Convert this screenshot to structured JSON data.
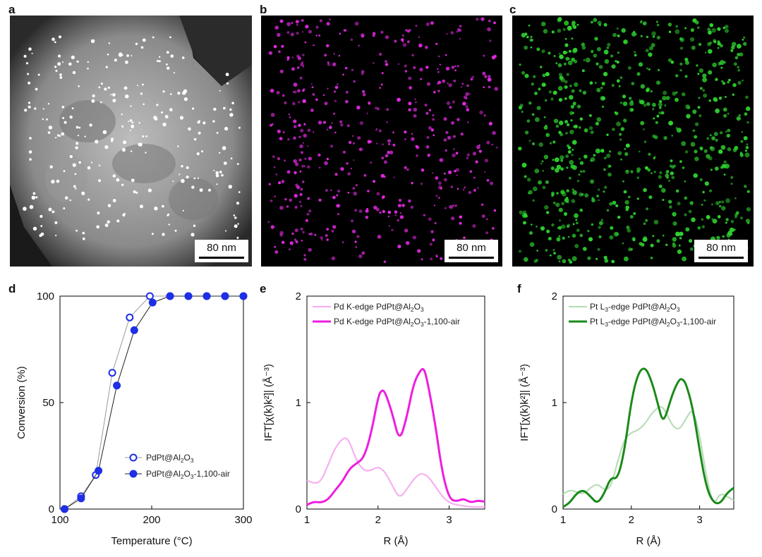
{
  "panels": {
    "a": {
      "letter": "a",
      "scale_label": "80 nm"
    },
    "b": {
      "letter": "b",
      "scale_label": "80 nm",
      "dot_color": "#e62ae6"
    },
    "c": {
      "letter": "c",
      "scale_label": "80 nm",
      "dot_color": "#2fd62f"
    },
    "d": {
      "letter": "d"
    },
    "e": {
      "letter": "e"
    },
    "f": {
      "letter": "f"
    }
  },
  "chart_data": [
    {
      "id": "d",
      "type": "line",
      "xlabel": "Temperature (°C)",
      "ylabel": "Conversion (%)",
      "xlim": [
        100,
        300
      ],
      "ylim": [
        0,
        100
      ],
      "xticks": [
        100,
        200,
        300
      ],
      "yticks": [
        0,
        50,
        100
      ],
      "legend_position": "bottom-right",
      "series": [
        {
          "name": "PdPt@Al2O3",
          "name_parts": [
            "PdPt@Al",
            "2",
            "O",
            "3",
            ""
          ],
          "marker": "open-circle",
          "color": "#1e2fe6",
          "x": [
            105,
            123,
            139,
            157,
            176,
            198,
            220,
            240,
            260,
            280,
            300
          ],
          "y": [
            0,
            6,
            16,
            64,
            90,
            100,
            100,
            100,
            100,
            100,
            100
          ]
        },
        {
          "name": "PdPt@Al2O3-1,100-air",
          "name_parts": [
            "PdPt@Al",
            "2",
            "O",
            "3",
            "-1,100-air"
          ],
          "marker": "filled-circle",
          "color": "#1e2fe6",
          "x": [
            105,
            123,
            142,
            162,
            181,
            201,
            220,
            240,
            260,
            280,
            300
          ],
          "y": [
            0,
            5,
            18,
            58,
            84,
            97,
            100,
            100,
            100,
            100,
            100
          ]
        }
      ]
    },
    {
      "id": "e",
      "type": "line",
      "xlabel": "R (Å)",
      "ylabel": "IFT[χ(k)k²]| (Å⁻³)",
      "xlim": [
        1,
        3.5
      ],
      "ylim": [
        0,
        2
      ],
      "xticks": [
        1,
        2,
        3
      ],
      "yticks": [
        0,
        1,
        2
      ],
      "legend_position": "top-left",
      "series": [
        {
          "name": "Pd K-edge PdPt@Al2O3",
          "name_parts": [
            "Pd K-edge PdPt@Al",
            "2",
            "O",
            "3",
            ""
          ],
          "color": "#f7b0f0",
          "width": 2.2,
          "x": [
            1.0,
            1.1,
            1.2,
            1.3,
            1.4,
            1.5,
            1.55,
            1.6,
            1.7,
            1.8,
            1.9,
            2.0,
            2.1,
            2.2,
            2.3,
            2.4,
            2.5,
            2.6,
            2.7,
            2.8,
            2.9,
            3.0,
            3.1,
            3.2,
            3.3,
            3.4,
            3.5
          ],
          "y": [
            0.27,
            0.24,
            0.26,
            0.42,
            0.58,
            0.66,
            0.67,
            0.63,
            0.45,
            0.36,
            0.36,
            0.4,
            0.35,
            0.22,
            0.1,
            0.18,
            0.28,
            0.34,
            0.31,
            0.22,
            0.12,
            0.06,
            0.04,
            0.03,
            0.02,
            0.02,
            0.02
          ]
        },
        {
          "name": "Pd K-edge PdPt@Al2O3-1,100-air",
          "name_parts": [
            "Pd K-edge PdPt@Al",
            "2",
            "O",
            "3",
            "-1,100-air"
          ],
          "color": "#ee1ddf",
          "width": 3,
          "x": [
            1.0,
            1.1,
            1.2,
            1.3,
            1.4,
            1.5,
            1.6,
            1.7,
            1.8,
            1.9,
            2.0,
            2.05,
            2.1,
            2.2,
            2.3,
            2.4,
            2.5,
            2.6,
            2.65,
            2.7,
            2.8,
            2.9,
            3.0,
            3.1,
            3.2,
            3.3,
            3.4,
            3.5
          ],
          "y": [
            0.04,
            0.07,
            0.06,
            0.09,
            0.18,
            0.26,
            0.38,
            0.43,
            0.48,
            0.7,
            1.05,
            1.12,
            1.1,
            0.9,
            0.63,
            0.85,
            1.18,
            1.31,
            1.32,
            1.18,
            0.82,
            0.35,
            0.1,
            0.07,
            0.1,
            0.06,
            0.08,
            0.07
          ]
        }
      ]
    },
    {
      "id": "f",
      "type": "line",
      "xlabel": "R (Å)",
      "ylabel": "IFT[χ(k)k²]| (Å⁻³)",
      "xlim": [
        1,
        3.5
      ],
      "ylim": [
        0,
        2
      ],
      "xticks": [
        1,
        2,
        3
      ],
      "yticks": [
        0,
        1,
        2
      ],
      "legend_position": "top-left",
      "series": [
        {
          "name": "Pt L3-edge PdPt@Al2O3",
          "name_parts": [
            "Pt L",
            "3",
            "-edge PdPt@Al",
            "2",
            "O",
            "3",
            ""
          ],
          "color": "#b9ddb9",
          "width": 2.2,
          "x": [
            1.0,
            1.1,
            1.2,
            1.3,
            1.4,
            1.5,
            1.6,
            1.7,
            1.8,
            1.9,
            2.0,
            2.1,
            2.2,
            2.3,
            2.4,
            2.45,
            2.5,
            2.6,
            2.7,
            2.8,
            2.9,
            3.0,
            3.1,
            3.2,
            3.3,
            3.4,
            3.5
          ],
          "y": [
            0.14,
            0.18,
            0.16,
            0.14,
            0.2,
            0.24,
            0.18,
            0.2,
            0.45,
            0.66,
            0.72,
            0.74,
            0.8,
            0.9,
            0.96,
            0.96,
            0.92,
            0.78,
            0.74,
            0.85,
            0.95,
            0.7,
            0.3,
            0.03,
            0.15,
            0.12,
            0.08
          ]
        },
        {
          "name": "Pt L3-edge PdPt@Al2O3-1,100-air",
          "name_parts": [
            "Pt L",
            "3",
            "-edge PdPt@Al",
            "2",
            "O",
            "3",
            "-1,100-air"
          ],
          "color": "#1a8a1a",
          "width": 3,
          "x": [
            1.0,
            1.1,
            1.2,
            1.3,
            1.4,
            1.5,
            1.6,
            1.7,
            1.8,
            1.9,
            2.0,
            2.1,
            2.2,
            2.3,
            2.4,
            2.45,
            2.5,
            2.6,
            2.7,
            2.75,
            2.8,
            2.9,
            3.0,
            3.1,
            3.2,
            3.3,
            3.4,
            3.5
          ],
          "y": [
            0.02,
            0.06,
            0.15,
            0.18,
            0.12,
            0.05,
            0.14,
            0.3,
            0.28,
            0.55,
            1.02,
            1.28,
            1.34,
            1.2,
            0.96,
            0.84,
            0.86,
            1.08,
            1.22,
            1.22,
            1.18,
            0.95,
            0.55,
            0.2,
            0.06,
            0.05,
            0.15,
            0.2
          ]
        }
      ]
    }
  ]
}
